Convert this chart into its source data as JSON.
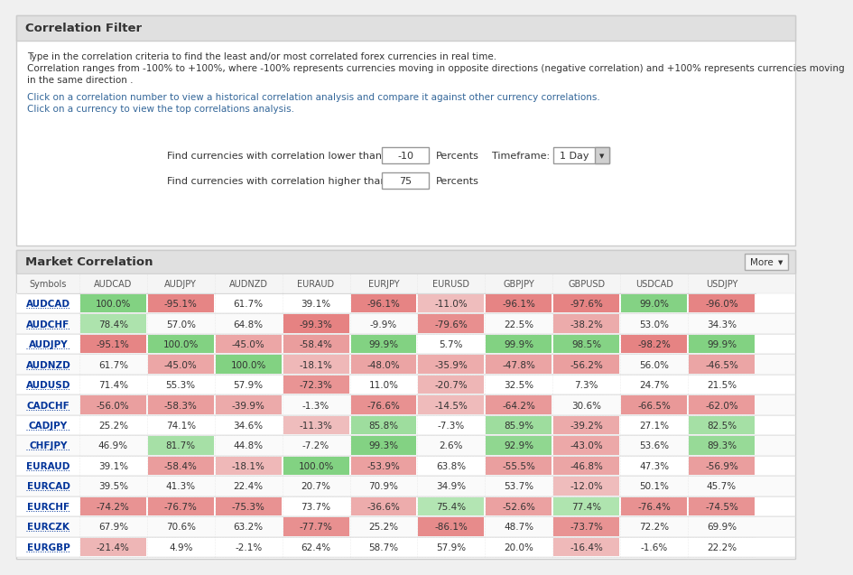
{
  "title_top": "Correlation Filter",
  "desc_text1": "Type in the correlation criteria to find the least and/or most correlated forex currencies in real time.",
  "desc_text2a": "Correlation ranges from -100% to +100%, where -100% represents currencies moving in opposite directions (negative correlation) and +100% represents currencies moving",
  "desc_text2b": "in the same direction .",
  "desc_text3a": "Click on a correlation number to view a historical correlation analysis and compare it against other currency correlations.",
  "desc_text3b": "Click on a currency to view the top correlations analysis.",
  "filter_label1": "Find currencies with correlation lower than:",
  "filter_val1": "-10",
  "filter_label2": "Find currencies with correlation higher than:",
  "filter_val2": "75",
  "filter_unit": "Percents",
  "timeframe_label": "Timeframe:",
  "timeframe_val": "1 Day",
  "table_title": "Market Correlation",
  "more_btn": "More",
  "columns": [
    "Symbols",
    "AUDCAD",
    "AUDJPY",
    "AUDNZD",
    "EURAUD",
    "EURJPY",
    "EURUSD",
    "GBPJPY",
    "GBPUSD",
    "USDCAD",
    "USDJPY"
  ],
  "rows": [
    [
      "AUDCAD",
      "100.0%",
      "-95.1%",
      "61.7%",
      "39.1%",
      "-96.1%",
      "-11.0%",
      "-96.1%",
      "-97.6%",
      "99.0%",
      "-96.0%"
    ],
    [
      "AUDCHF",
      "78.4%",
      "57.0%",
      "64.8%",
      "-99.3%",
      "-9.9%",
      "-79.6%",
      "22.5%",
      "-38.2%",
      "53.0%",
      "34.3%"
    ],
    [
      "AUDJPY",
      "-95.1%",
      "100.0%",
      "-45.0%",
      "-58.4%",
      "99.9%",
      "5.7%",
      "99.9%",
      "98.5%",
      "-98.2%",
      "99.9%"
    ],
    [
      "AUDNZD",
      "61.7%",
      "-45.0%",
      "100.0%",
      "-18.1%",
      "-48.0%",
      "-35.9%",
      "-47.8%",
      "-56.2%",
      "56.0%",
      "-46.5%"
    ],
    [
      "AUDUSD",
      "71.4%",
      "55.3%",
      "57.9%",
      "-72.3%",
      "11.0%",
      "-20.7%",
      "32.5%",
      "7.3%",
      "24.7%",
      "21.5%"
    ],
    [
      "CADCHF",
      "-56.0%",
      "-58.3%",
      "-39.9%",
      "-1.3%",
      "-76.6%",
      "-14.5%",
      "-64.2%",
      "30.6%",
      "-66.5%",
      "-62.0%"
    ],
    [
      "CADJPY",
      "25.2%",
      "74.1%",
      "34.6%",
      "-11.3%",
      "85.8%",
      "-7.3%",
      "85.9%",
      "-39.2%",
      "27.1%",
      "82.5%"
    ],
    [
      "CHFJPY",
      "46.9%",
      "81.7%",
      "44.8%",
      "-7.2%",
      "99.3%",
      "2.6%",
      "92.9%",
      "-43.0%",
      "53.6%",
      "89.3%"
    ],
    [
      "EURAUD",
      "39.1%",
      "-58.4%",
      "-18.1%",
      "100.0%",
      "-53.9%",
      "63.8%",
      "-55.5%",
      "-46.8%",
      "47.3%",
      "-56.9%"
    ],
    [
      "EURCAD",
      "39.5%",
      "41.3%",
      "22.4%",
      "20.7%",
      "70.9%",
      "34.9%",
      "53.7%",
      "-12.0%",
      "50.1%",
      "45.7%"
    ],
    [
      "EURCHF",
      "-74.2%",
      "-76.7%",
      "-75.3%",
      "73.7%",
      "-36.6%",
      "75.4%",
      "-52.6%",
      "77.4%",
      "-76.4%",
      "-74.5%"
    ],
    [
      "EURCZK",
      "67.9%",
      "70.6%",
      "63.2%",
      "-77.7%",
      "25.2%",
      "-86.1%",
      "48.7%",
      "-73.7%",
      "72.2%",
      "69.9%"
    ],
    [
      "EURGBP",
      "-21.4%",
      "4.9%",
      "-2.1%",
      "62.4%",
      "58.7%",
      "57.9%",
      "20.0%",
      "-16.4%",
      "-1.6%",
      "22.2%"
    ]
  ],
  "green_threshold": 75,
  "pink_threshold": -10
}
